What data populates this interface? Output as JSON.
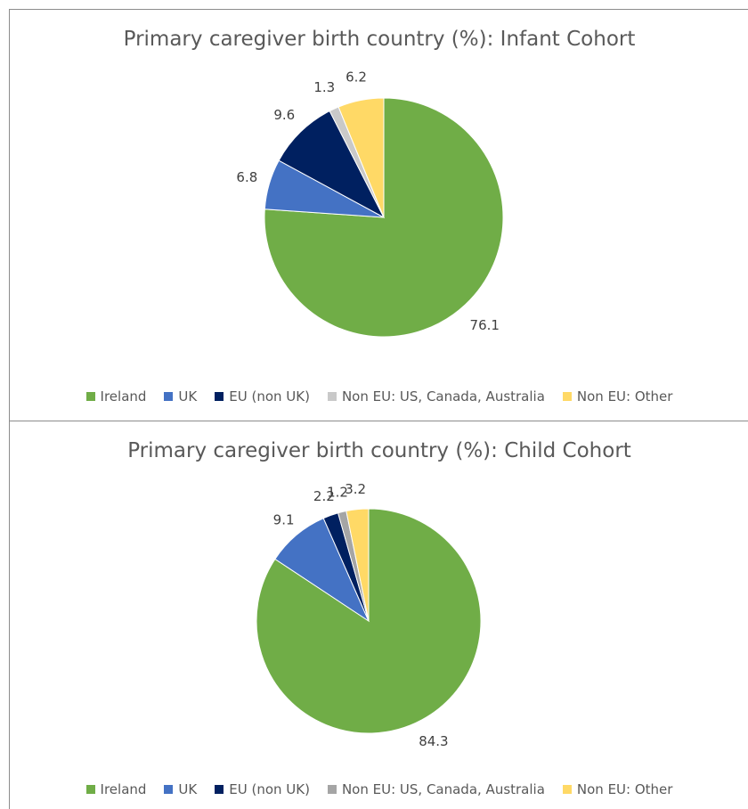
{
  "chart_data": [
    {
      "type": "pie",
      "title": "Primary caregiver birth country (%): Infant Cohort",
      "categories": [
        "Ireland",
        "UK",
        "EU (non UK)",
        "Non EU: US, Canada, Australia",
        "Non EU: Other"
      ],
      "values": [
        76.1,
        6.8,
        9.6,
        1.3,
        6.2
      ],
      "data_labels": [
        "76.1",
        "6.8",
        "9.6",
        "1.3",
        "6.2"
      ],
      "colors": [
        "#70ad47",
        "#4472c4",
        "#002060",
        "#c9c9c9",
        "#ffd966"
      ],
      "legend_position": "bottom"
    },
    {
      "type": "pie",
      "title": "Primary caregiver birth country (%): Child Cohort",
      "categories": [
        "Ireland",
        "UK",
        "EU (non UK)",
        "Non EU: US, Canada, Australia",
        "Non EU: Other"
      ],
      "values": [
        84.3,
        9.1,
        2.2,
        1.2,
        3.2
      ],
      "data_labels": [
        "84.3",
        "9.1",
        "2.2",
        "1.2",
        "3.2"
      ],
      "colors": [
        "#70ad47",
        "#4472c4",
        "#002060",
        "#a5a5a5",
        "#ffd966"
      ],
      "legend_position": "bottom"
    }
  ]
}
